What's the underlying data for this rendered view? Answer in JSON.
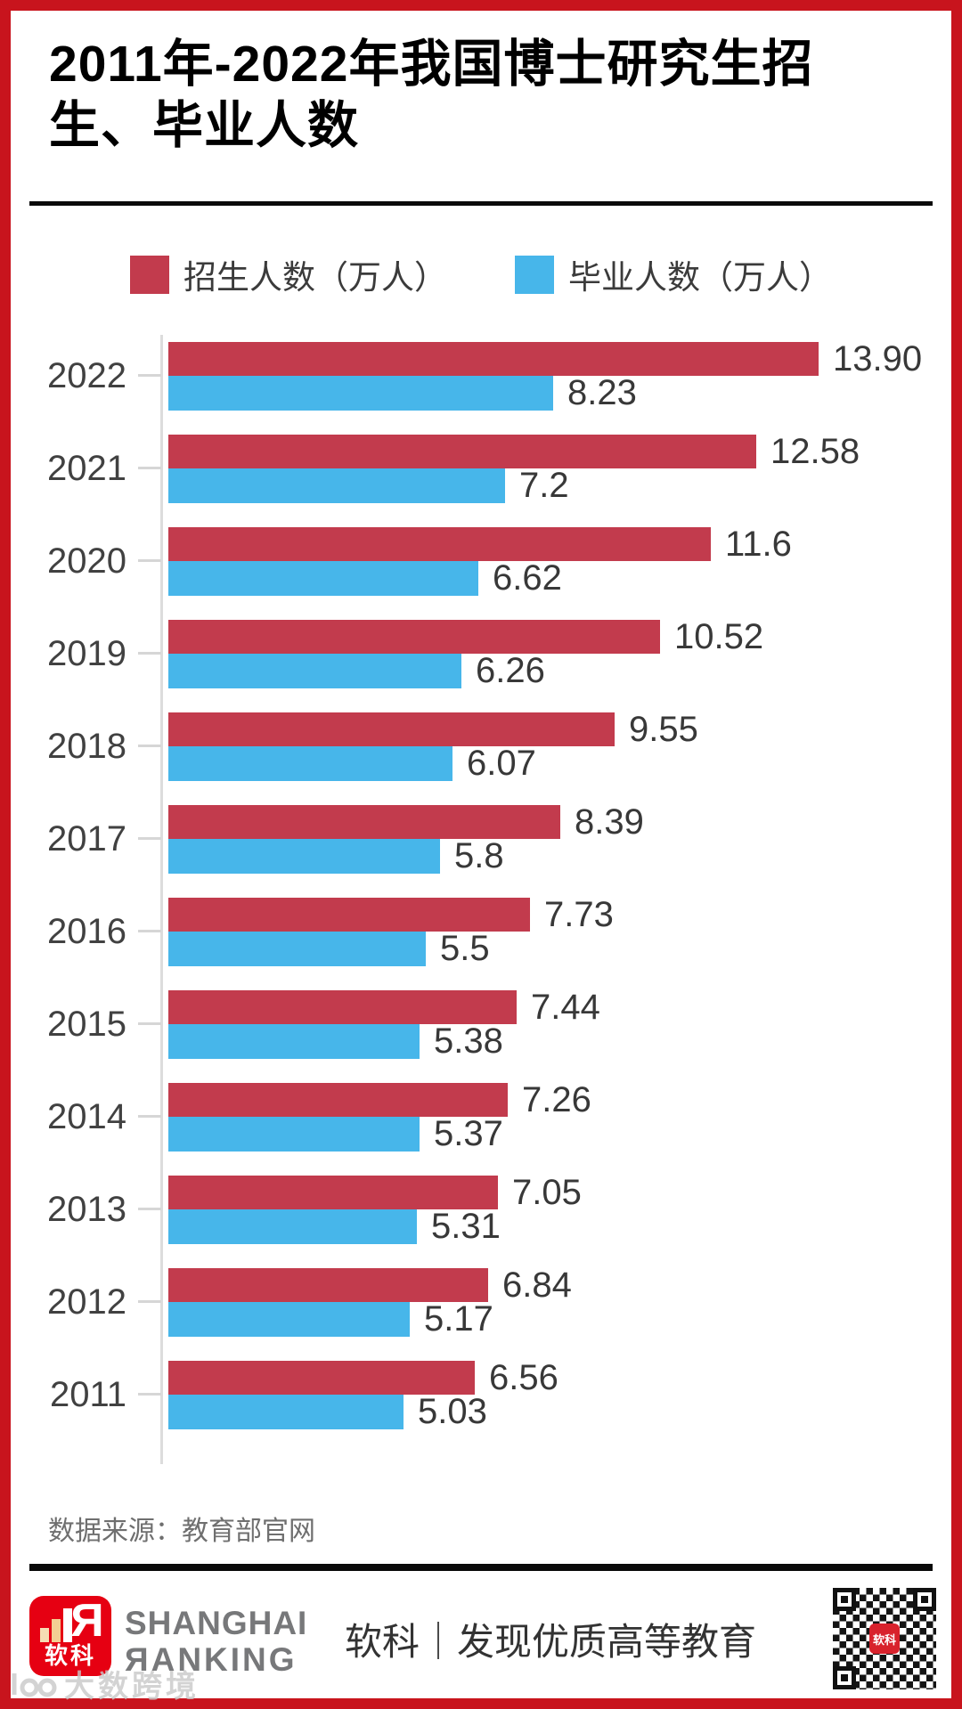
{
  "title": {
    "line1": "2011年-2022年我国博士研究生招",
    "line2": "生、毕业人数",
    "full": "2011年-2022年我国博士研究生招生、毕业人数"
  },
  "legend": {
    "items": [
      {
        "label": "招生人数（万人）",
        "color": "#c23b4d"
      },
      {
        "label": "毕业人数（万人）",
        "color": "#47b6ea"
      }
    ]
  },
  "chart_data": {
    "type": "bar",
    "orientation": "horizontal",
    "title": "2011年-2022年我国博士研究生招生、毕业人数",
    "unit": "万人",
    "xlim": [
      0,
      14.5
    ],
    "grid": false,
    "categories": [
      "2022",
      "2021",
      "2020",
      "2019",
      "2018",
      "2017",
      "2016",
      "2015",
      "2014",
      "2013",
      "2012",
      "2011"
    ],
    "series": [
      {
        "name": "招生人数（万人）",
        "color": "#c23b4d",
        "values": [
          13.9,
          12.58,
          11.6,
          10.52,
          9.55,
          8.39,
          7.73,
          7.44,
          7.26,
          7.05,
          6.84,
          6.56
        ],
        "labels": [
          "13.90",
          "12.58",
          "11.6",
          "10.52",
          "9.55",
          "8.39",
          "7.73",
          "7.44",
          "7.26",
          "7.05",
          "6.84",
          "6.56"
        ]
      },
      {
        "name": "毕业人数（万人）",
        "color": "#47b6ea",
        "values": [
          8.23,
          7.2,
          6.62,
          6.26,
          6.07,
          5.8,
          5.5,
          5.38,
          5.37,
          5.31,
          5.17,
          5.03
        ],
        "labels": [
          "8.23",
          "7.2",
          "6.62",
          "6.26",
          "6.07",
          "5.8",
          "5.5",
          "5.38",
          "5.37",
          "5.31",
          "5.17",
          "5.03"
        ]
      }
    ]
  },
  "source": {
    "text": "数据来源：教育部官网"
  },
  "footer": {
    "logo_text": "软科",
    "brand_line1": "SHANGHAI",
    "brand_line2": "ЯANKING",
    "tagline": "软科｜发现优质高等教育",
    "qr_center_text": "软科"
  },
  "watermark": {
    "text": "大数跨境"
  },
  "colors": {
    "frame_red": "#c8141d",
    "bar_red": "#c23b4d",
    "bar_blue": "#47b6ea",
    "logo_red": "#e60012",
    "axis_gray": "#dcdcdc"
  }
}
